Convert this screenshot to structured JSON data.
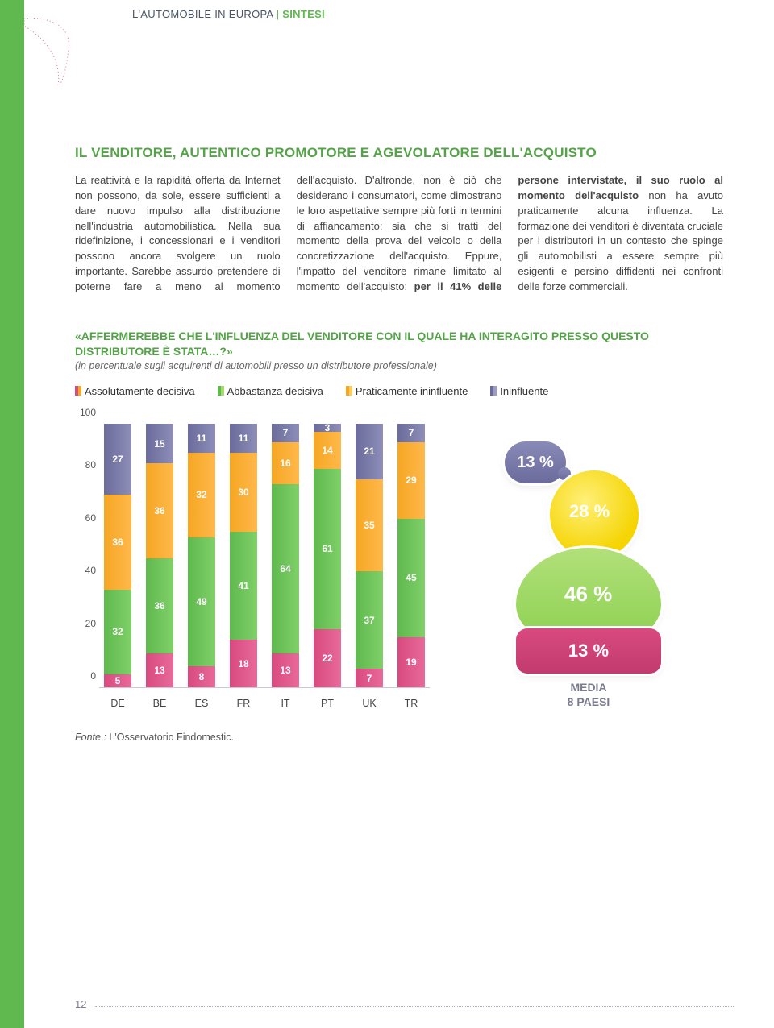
{
  "header": {
    "left": "L'AUTOMOBILE IN EUROPA",
    "right": "SINTESI"
  },
  "section_title": "IL VENDITORE, AUTENTICO PROMOTORE E AGEVOLATORE DELL'ACQUISTO",
  "body_html": "La reattività e la rapidità offerta da Internet non possono, da sole, essere sufficienti a dare nuovo impulso alla distribuzione nell'industria automobilistica. Nella sua ridefinizione, i concessionari e i venditori possono ancora svolgere un ruolo importante. Sarebbe assurdo pretendere di poterne fare a meno al momento dell'acquisto. D'altronde, non è ciò che desiderano i consumatori, come dimostrano le loro aspettative sempre più forti in termini di affiancamento: sia che si tratti del momento della prova del veicolo o della concretizzazione dell'acquisto. Eppure, l'impatto del venditore rimane limitato al momento dell'acquisto: <span class=\"bold\">per il 41% delle persone intervistate, il suo ruolo al momento dell'acquisto</span> non ha avuto praticamente alcuna influenza. La formazione dei venditori è diventata cruciale per i distributori in un contesto che spinge gli automobilisti a essere sempre più esigenti e persino diffidenti nei confronti delle forze commerciali.",
  "question": "«AFFERMEREBBE CHE L'INFLUENZA DEL VENDITORE CON IL QUALE HA INTERAGITO PRESSO QUESTO DISTRIBUTORE È STATA…?»",
  "subnote": "(in percentuale sugli acquirenti di automobili presso un distributore professionale)",
  "legend": {
    "items": [
      {
        "label": "Assolutamente decisiva",
        "class": "sw2"
      },
      {
        "label": "Abbastanza decisiva",
        "class": "swg"
      },
      {
        "label": "Praticamente ininfluente",
        "class": "swo"
      },
      {
        "label": "Ininfluente",
        "class": "swp"
      }
    ]
  },
  "chart": {
    "type": "stacked-bar",
    "ylim": [
      0,
      100
    ],
    "yticks": [
      0,
      20,
      40,
      60,
      80,
      100
    ],
    "categories": [
      "DE",
      "BE",
      "ES",
      "FR",
      "IT",
      "PT",
      "UK",
      "TR"
    ],
    "colors": {
      "ininfluente": "#6b6b9c",
      "praticamente": "#f5a623",
      "abbastanza": "#5fb94e",
      "assolutamente": "#d94a7f"
    },
    "series": [
      {
        "name": "ininfluente",
        "values": [
          27,
          15,
          11,
          11,
          7,
          3,
          21,
          7
        ]
      },
      {
        "name": "praticamente",
        "values": [
          36,
          36,
          32,
          30,
          16,
          14,
          35,
          29
        ]
      },
      {
        "name": "abbastanza",
        "values": [
          32,
          36,
          49,
          41,
          64,
          61,
          37,
          45
        ]
      },
      {
        "name": "assolutamente",
        "values": [
          5,
          13,
          8,
          18,
          13,
          22,
          7,
          19
        ]
      }
    ]
  },
  "figure": {
    "speech": "13 %",
    "head": "28 %",
    "body": "46 %",
    "foot": "13 %",
    "caption_line1": "MEDIA",
    "caption_line2": "8 PAESI",
    "colors": {
      "speech": "#6b6b9c",
      "head": "#f5d400",
      "body": "#8fd254",
      "foot": "#d94a7f"
    }
  },
  "source": {
    "label": "Fonte :",
    "text": " L'Osservatorio Findomestic."
  },
  "page": "12"
}
